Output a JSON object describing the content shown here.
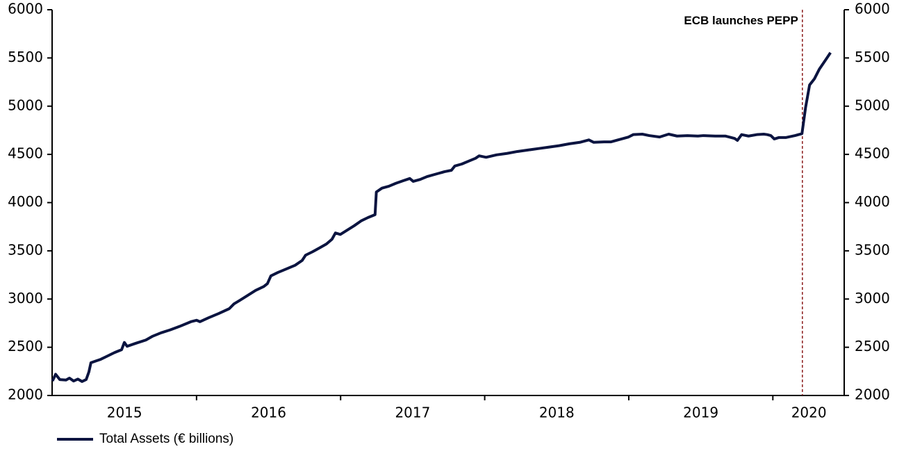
{
  "chart_data": {
    "type": "line",
    "xlim": [
      2015,
      2020.5
    ],
    "xticks": [
      {
        "value": 2015.5,
        "label": "2015"
      },
      {
        "value": 2016.5,
        "label": "2016"
      },
      {
        "value": 2017.5,
        "label": "2017"
      },
      {
        "value": 2018.5,
        "label": "2018"
      },
      {
        "value": 2019.5,
        "label": "2019"
      },
      {
        "value": 2020.25,
        "label": "2020"
      }
    ],
    "xtick_marks": [
      2016,
      2017,
      2018,
      2019,
      2020
    ],
    "ylim": [
      2000,
      6000
    ],
    "yticks": [
      2000,
      2500,
      3000,
      3500,
      4000,
      4500,
      5000,
      5500,
      6000
    ],
    "y2lim": [
      2000,
      6000
    ],
    "y2ticks": [
      2000,
      2500,
      3000,
      3500,
      4000,
      4500,
      5000,
      5500,
      6000
    ],
    "grid": false,
    "legend": "bottom-left",
    "annotation": {
      "text": "ECB launches PEPP",
      "x": 2020.205,
      "color": "#8b1a1a"
    },
    "series": [
      {
        "name": "Total Assets (€ billions)",
        "color": "#0b1440",
        "x": [
          2015.0,
          2015.022,
          2015.051,
          2015.094,
          2015.118,
          2015.147,
          2015.176,
          2015.205,
          2015.234,
          2015.253,
          2015.267,
          2015.296,
          2015.335,
          2015.383,
          2015.431,
          2015.48,
          2015.499,
          2015.518,
          2015.576,
          2015.648,
          2015.696,
          2015.754,
          2015.817,
          2015.88,
          2015.961,
          2016.0,
          2016.024,
          2016.082,
          2016.154,
          2016.227,
          2016.26,
          2016.299,
          2016.347,
          2016.41,
          2016.467,
          2016.492,
          2016.516,
          2016.564,
          2016.612,
          2016.684,
          2016.733,
          2016.757,
          2016.805,
          2016.853,
          2016.901,
          2016.94,
          2016.964,
          2016.998,
          2017.046,
          2017.094,
          2017.142,
          2017.19,
          2017.239,
          2017.248,
          2017.287,
          2017.335,
          2017.383,
          2017.431,
          2017.48,
          2017.504,
          2017.552,
          2017.6,
          2017.648,
          2017.672,
          2017.72,
          2017.769,
          2017.793,
          2017.841,
          2017.889,
          2017.937,
          2017.961,
          2018.01,
          2018.082,
          2018.154,
          2018.227,
          2018.299,
          2018.371,
          2018.443,
          2018.516,
          2018.588,
          2018.66,
          2018.723,
          2018.757,
          2018.829,
          2018.877,
          2018.925,
          2018.998,
          2019.031,
          2019.094,
          2019.142,
          2019.214,
          2019.277,
          2019.335,
          2019.407,
          2019.48,
          2019.518,
          2019.6,
          2019.672,
          2019.735,
          2019.754,
          2019.783,
          2019.831,
          2019.889,
          2019.937,
          2019.961,
          2019.986,
          2020.01,
          2020.043,
          2020.092,
          2020.154,
          2020.202,
          2020.227,
          2020.255,
          2020.289,
          2020.323,
          2020.371,
          2020.4
        ],
        "values": [
          2150,
          2220,
          2165,
          2160,
          2180,
          2150,
          2170,
          2145,
          2165,
          2245,
          2340,
          2355,
          2375,
          2410,
          2445,
          2475,
          2550,
          2510,
          2540,
          2575,
          2615,
          2650,
          2680,
          2715,
          2765,
          2780,
          2765,
          2805,
          2850,
          2900,
          2950,
          2985,
          3030,
          3090,
          3130,
          3160,
          3240,
          3275,
          3305,
          3350,
          3400,
          3455,
          3490,
          3530,
          3570,
          3620,
          3685,
          3670,
          3715,
          3760,
          3810,
          3845,
          3875,
          4110,
          4150,
          4170,
          4200,
          4225,
          4250,
          4220,
          4240,
          4270,
          4290,
          4300,
          4320,
          4335,
          4380,
          4400,
          4430,
          4460,
          4485,
          4470,
          4495,
          4510,
          4530,
          4545,
          4560,
          4575,
          4590,
          4610,
          4625,
          4650,
          4625,
          4630,
          4630,
          4650,
          4680,
          4705,
          4710,
          4695,
          4680,
          4710,
          4690,
          4695,
          4690,
          4695,
          4690,
          4690,
          4665,
          4645,
          4705,
          4690,
          4705,
          4710,
          4705,
          4695,
          4660,
          4675,
          4675,
          4695,
          4715,
          4985,
          5220,
          5285,
          5385,
          5490,
          5555
        ]
      }
    ]
  }
}
